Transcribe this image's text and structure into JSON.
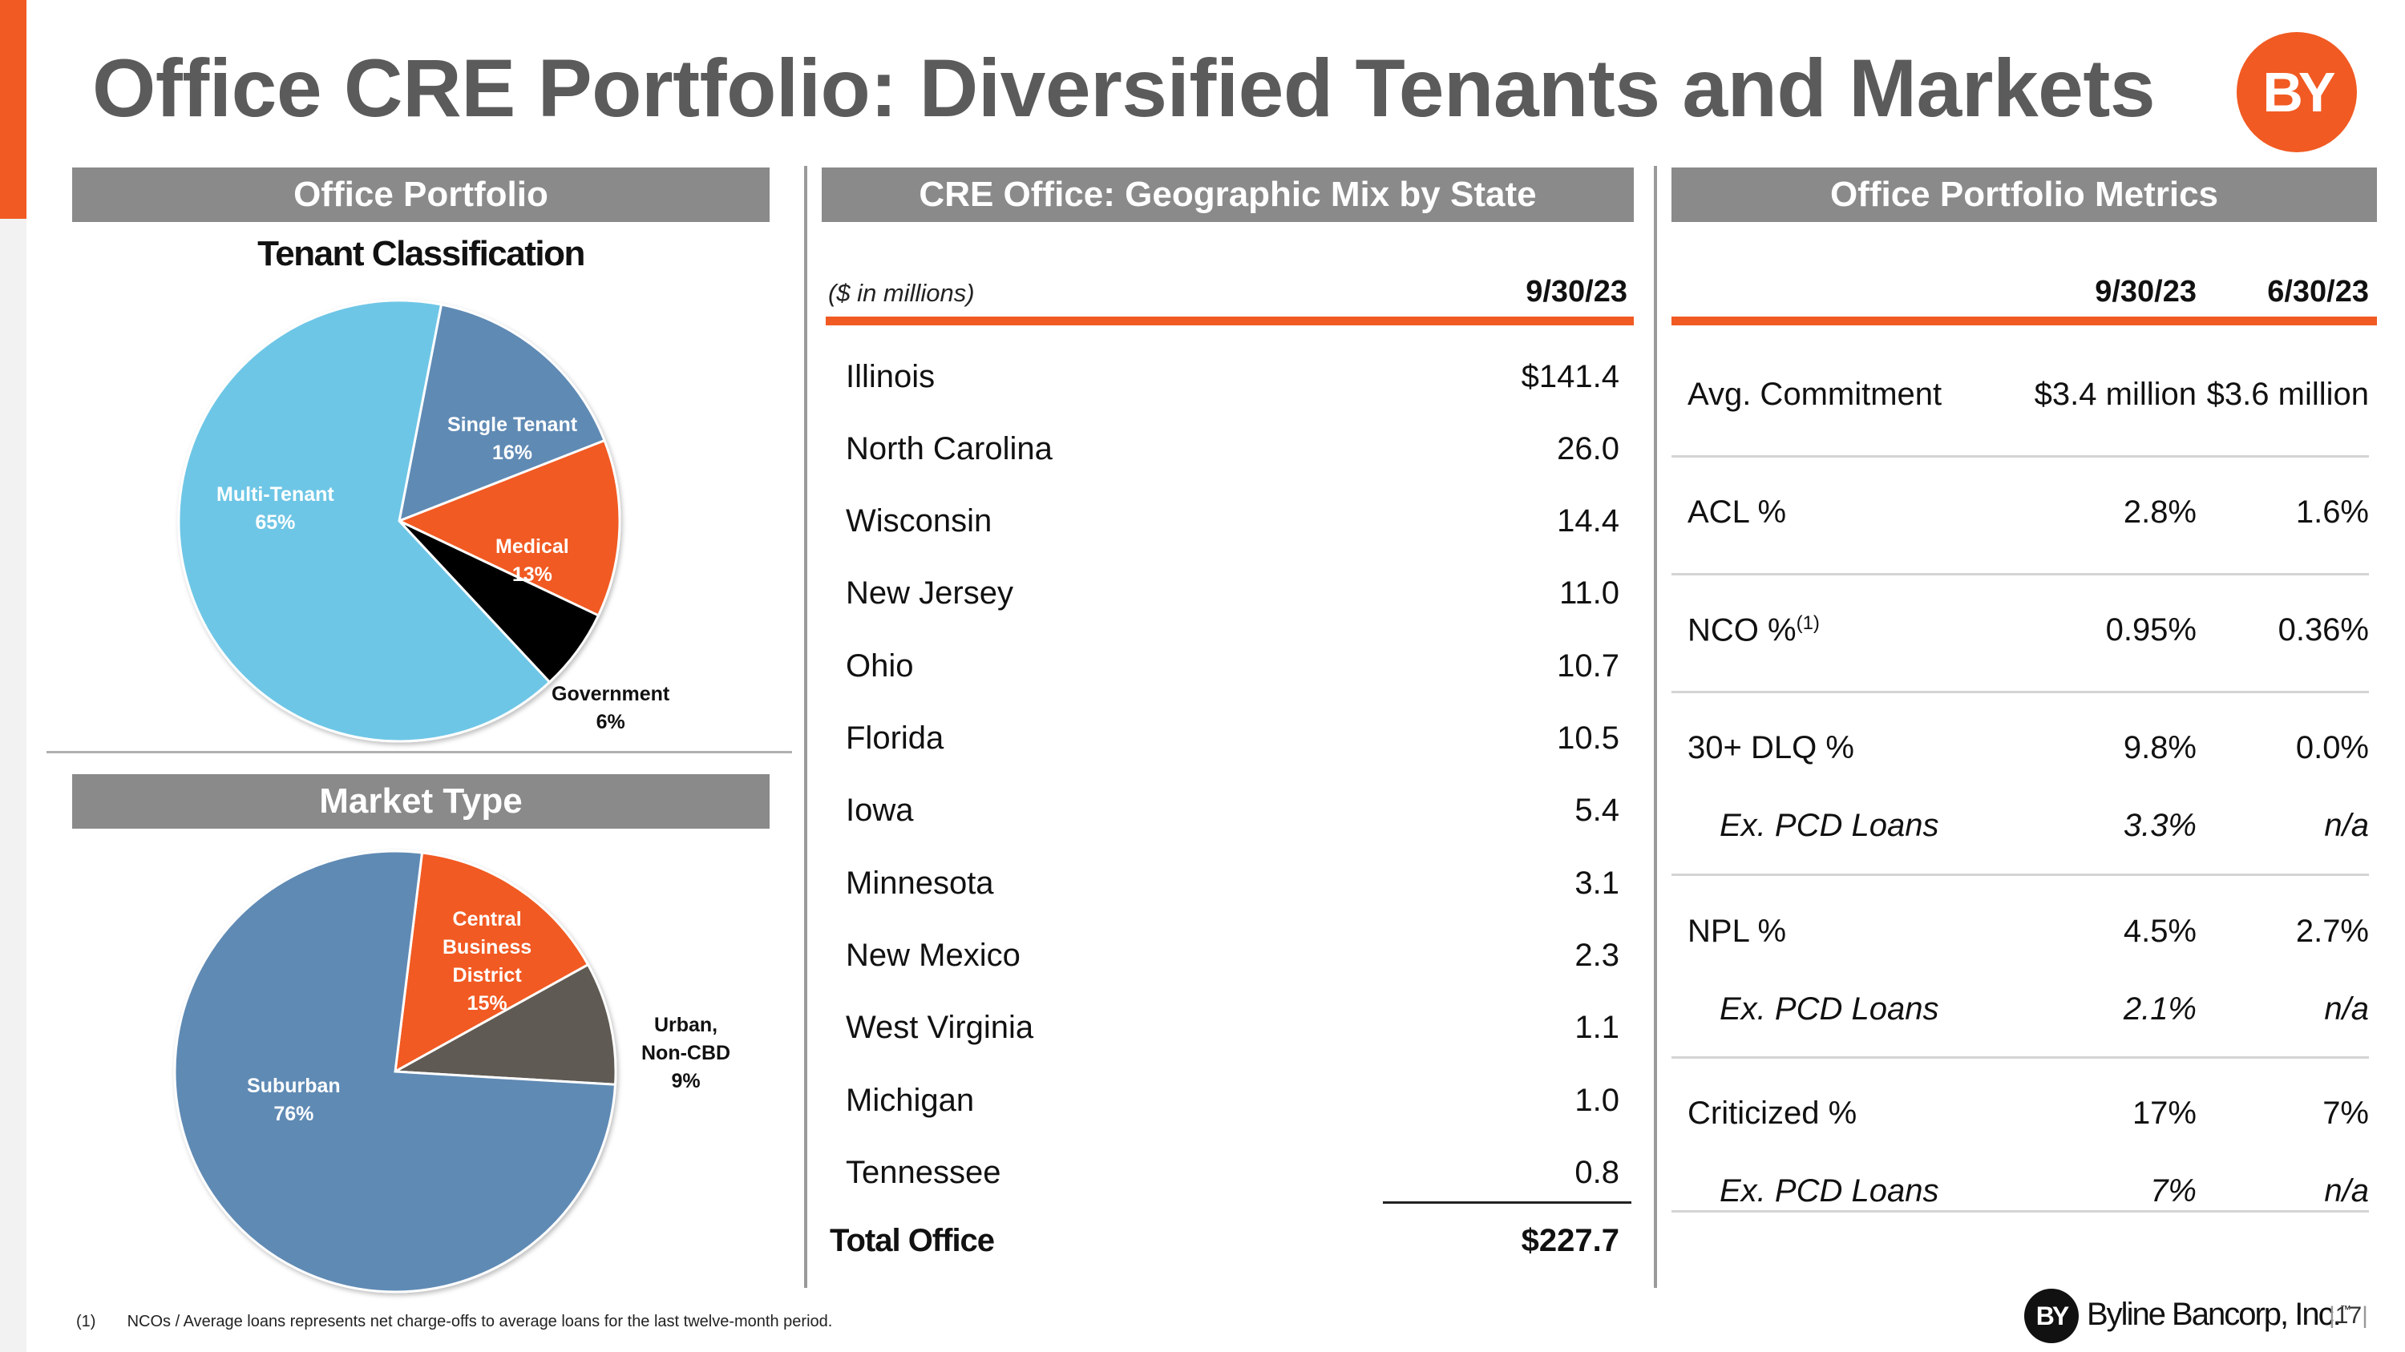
{
  "title": "Office CRE Portfolio: Diversified Tenants and Markets",
  "logo_text": "BY",
  "colors": {
    "accent": "#f15a22",
    "band": "#898a89",
    "light_blue": "#6ec6e6",
    "steel_blue": "#5f8ab4",
    "black": "#000000",
    "dark_gray": "#5f5a52"
  },
  "left": {
    "section_title": "Office Portfolio",
    "chart_title": "Tenant Classification",
    "market_section_title": "Market Type"
  },
  "chart_data": [
    {
      "type": "pie",
      "title": "Tenant Classification",
      "labels": [
        "Multi-Tenant",
        "Single Tenant",
        "Medical",
        "Government"
      ],
      "values": [
        65,
        16,
        13,
        6
      ],
      "display": [
        "65%",
        "16%",
        "13%",
        "6%"
      ],
      "colors": [
        "#6ec6e6",
        "#5f8ab4",
        "#f15a22",
        "#000000"
      ]
    },
    {
      "type": "pie",
      "title": "Market Type",
      "labels": [
        "Suburban",
        "Central Business District",
        "Urban, Non-CBD"
      ],
      "values": [
        76,
        15,
        9
      ],
      "display": [
        "76%",
        "15%",
        "9%"
      ],
      "colors": [
        "#5f8ab4",
        "#f15a22",
        "#5f5a52"
      ]
    }
  ],
  "pie1_labels": {
    "multi": [
      "Multi-Tenant",
      "65%"
    ],
    "single": [
      "Single Tenant",
      "16%"
    ],
    "medical": [
      "Medical",
      "13%"
    ],
    "government": [
      "Government",
      "6%"
    ]
  },
  "pie2_labels": {
    "cbd": [
      "Central",
      "Business",
      "District",
      "15%"
    ],
    "urban": [
      "Urban,",
      "Non-CBD",
      "9%"
    ],
    "suburban": [
      "Suburban",
      "76%"
    ]
  },
  "geo": {
    "section_title": "CRE Office: Geographic Mix by State",
    "unit": "($ in millions)",
    "date": "9/30/23",
    "rows": [
      {
        "state": "Illinois",
        "value": "$141.4"
      },
      {
        "state": "North Carolina",
        "value": "26.0"
      },
      {
        "state": "Wisconsin",
        "value": "14.4"
      },
      {
        "state": "New Jersey",
        "value": "11.0"
      },
      {
        "state": "Ohio",
        "value": "10.7"
      },
      {
        "state": "Florida",
        "value": "10.5"
      },
      {
        "state": "Iowa",
        "value": "5.4"
      },
      {
        "state": "Minnesota",
        "value": "3.1"
      },
      {
        "state": "New Mexico",
        "value": "2.3"
      },
      {
        "state": "West Virginia",
        "value": "1.1"
      },
      {
        "state": "Michigan",
        "value": "1.0"
      },
      {
        "state": "Tennessee",
        "value": "0.8"
      }
    ],
    "total_label": "Total Office",
    "total_value": "$227.7"
  },
  "metrics": {
    "section_title": "Office Portfolio Metrics",
    "col1": "9/30/23",
    "col2": "6/30/23",
    "rows": [
      {
        "label": "Avg. Commitment",
        "v1": "$3.4 million",
        "v2": "$3.6 million"
      },
      {
        "label": "ACL %",
        "v1": "2.8%",
        "v2": "1.6%"
      },
      {
        "label": "NCO %",
        "sup": "(1)",
        "v1": "0.95%",
        "v2": "0.36%"
      },
      {
        "label": "30+ DLQ %",
        "v1": "9.8%",
        "v2": "0.0%"
      },
      {
        "label": "Ex. PCD Loans",
        "v1": "3.3%",
        "v2": "n/a"
      },
      {
        "label": "NPL %",
        "v1": "4.5%",
        "v2": "2.7%"
      },
      {
        "label": "Ex. PCD Loans",
        "v1": "2.1%",
        "v2": "n/a"
      },
      {
        "label": "Criticized %",
        "v1": "17%",
        "v2": "7%"
      },
      {
        "label": "Ex. PCD Loans",
        "v1": "7%",
        "v2": "n/a"
      }
    ]
  },
  "footnote": {
    "marker": "(1)",
    "text": "NCOs / Average loans represents net charge-offs to average loans for the last twelve-month period."
  },
  "footer": {
    "logo_text": "BY",
    "company": "Byline Bancorp, Inc.",
    "tm": "™",
    "page": "17"
  }
}
